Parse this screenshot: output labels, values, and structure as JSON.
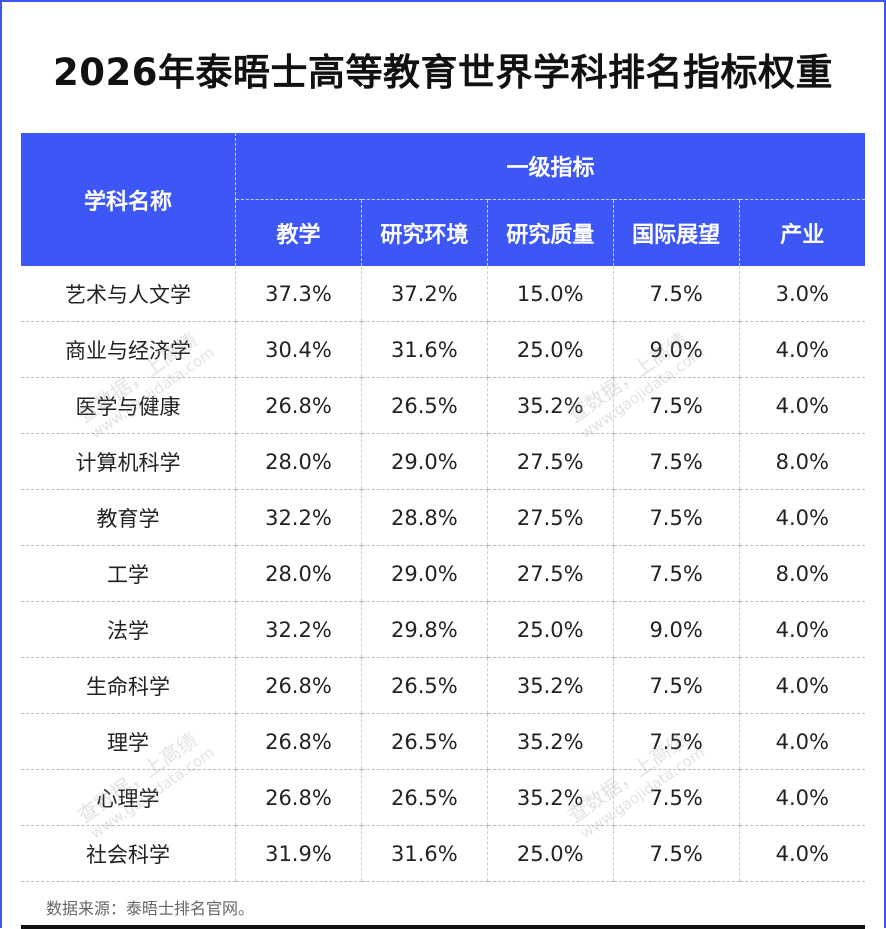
{
  "title": "2026年泰晤士高等教育世界学科排名指标权重",
  "header": {
    "subject": "学科名称",
    "group": "一级指标",
    "columns": [
      "教学",
      "研究环境",
      "研究质量",
      "国际展望",
      "产业"
    ]
  },
  "rows": [
    [
      "艺术与人文学",
      "37.3%",
      "37.2%",
      "15.0%",
      "7.5%",
      "3.0%"
    ],
    [
      "商业与经济学",
      "30.4%",
      "31.6%",
      "25.0%",
      "9.0%",
      "4.0%"
    ],
    [
      "医学与健康",
      "26.8%",
      "26.5%",
      "35.2%",
      "7.5%",
      "4.0%"
    ],
    [
      "计算机科学",
      "28.0%",
      "29.0%",
      "27.5%",
      "7.5%",
      "8.0%"
    ],
    [
      "教育学",
      "32.2%",
      "28.8%",
      "27.5%",
      "7.5%",
      "4.0%"
    ],
    [
      "工学",
      "28.0%",
      "29.0%",
      "27.5%",
      "7.5%",
      "8.0%"
    ],
    [
      "法学",
      "32.2%",
      "29.8%",
      "25.0%",
      "9.0%",
      "4.0%"
    ],
    [
      "生命科学",
      "26.8%",
      "26.5%",
      "35.2%",
      "7.5%",
      "4.0%"
    ],
    [
      "理学",
      "26.8%",
      "26.5%",
      "35.2%",
      "7.5%",
      "4.0%"
    ],
    [
      "心理学",
      "26.8%",
      "26.5%",
      "35.2%",
      "7.5%",
      "4.0%"
    ],
    [
      "社会科学",
      "31.9%",
      "31.6%",
      "25.0%",
      "7.5%",
      "4.0%"
    ]
  ],
  "source": "数据来源：泰晤士排名官网。",
  "watermark": {
    "line1": "查数据，上高绩",
    "line2": "www.gaojidata.com"
  }
}
